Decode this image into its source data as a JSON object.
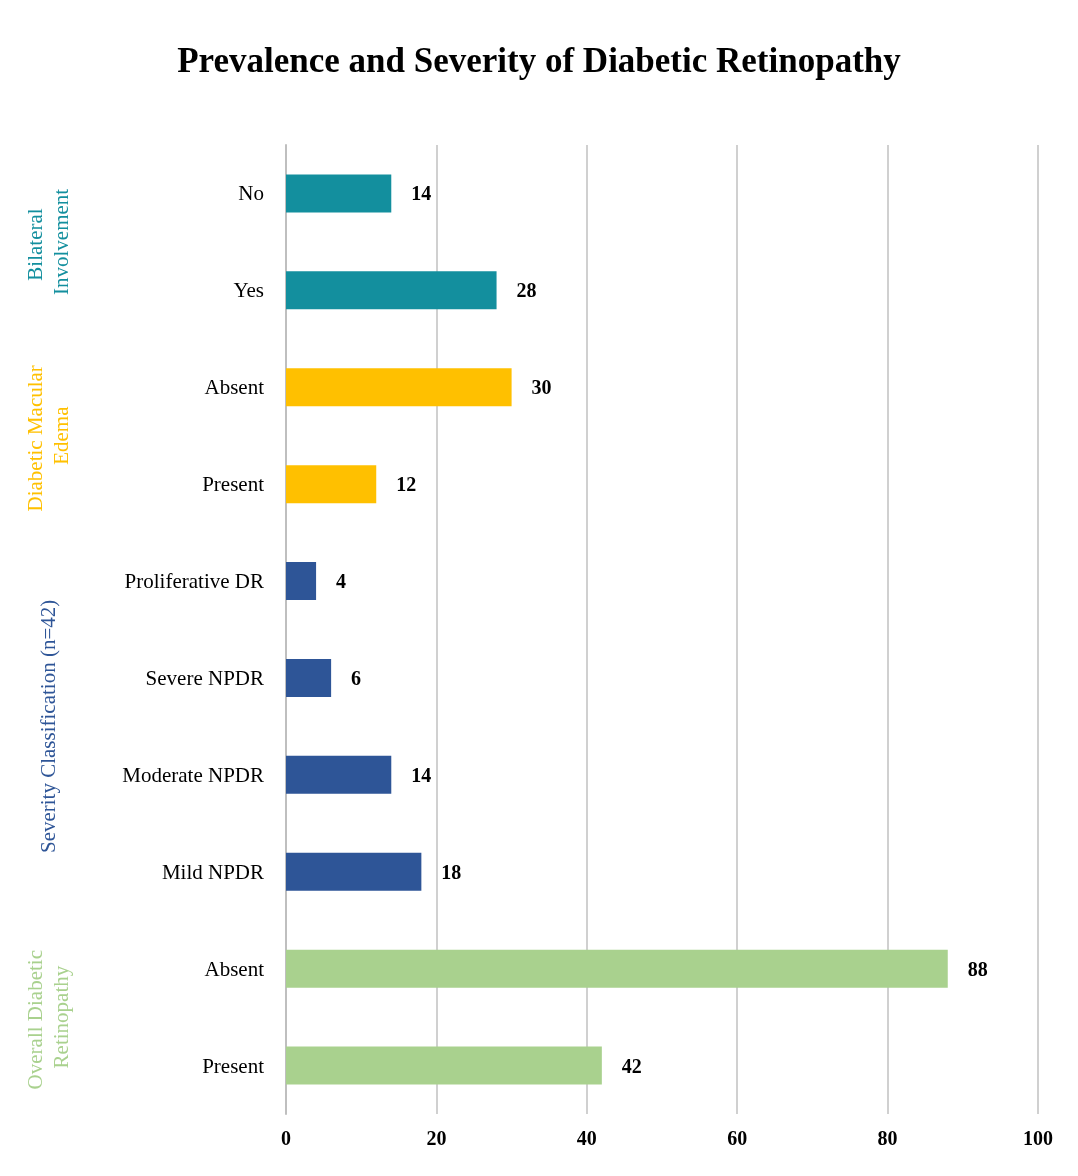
{
  "chart_data": {
    "type": "bar",
    "title": "Prevalence and Severity of Diabetic Retinopathy",
    "orientation": "horizontal",
    "stacked": true,
    "categories": [
      "No",
      "Yes",
      "Absent",
      "Present",
      "Proliferative DR",
      "Severe NPDR",
      "Moderate NPDR",
      "Mild NPDR",
      "Absent",
      "Present"
    ],
    "series": [
      {
        "name": "Bilateral Involvement",
        "color": "#138f9e",
        "values": [
          14,
          28,
          null,
          null,
          null,
          null,
          null,
          null,
          null,
          null
        ]
      },
      {
        "name": "Diabetic Macular Edema",
        "color": "#ffc000",
        "values": [
          null,
          null,
          30,
          12,
          null,
          null,
          null,
          null,
          null,
          null
        ]
      },
      {
        "name": "Severity Classification (n=42)",
        "color": "#2e5597",
        "values": [
          null,
          null,
          null,
          null,
          4,
          6,
          14,
          18,
          null,
          null
        ]
      },
      {
        "name": "Overall Diabetic Retinopathy",
        "color": "#a9d18e",
        "values": [
          null,
          null,
          null,
          null,
          null,
          null,
          null,
          null,
          88,
          42
        ]
      }
    ],
    "xlim": [
      0,
      100
    ],
    "xticks": [
      0,
      20,
      40,
      60,
      80,
      100
    ],
    "grid": "x",
    "data_labels": true,
    "legend": false
  }
}
